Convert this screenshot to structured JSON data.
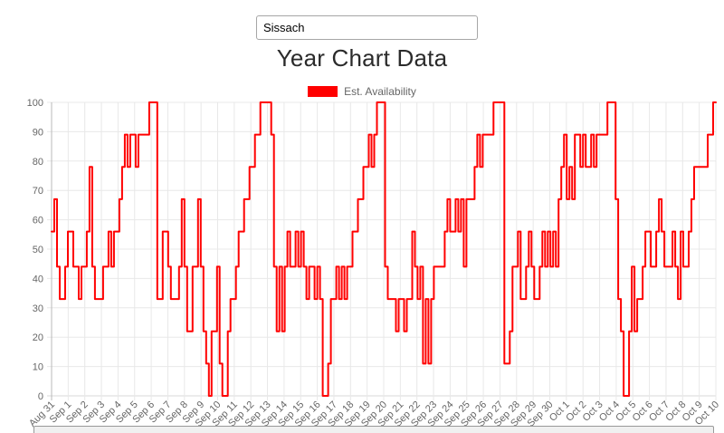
{
  "search": {
    "value": "Sissach"
  },
  "chart": {
    "title": "Year Chart Data",
    "legend_label": "Est. Availability"
  },
  "colors": {
    "series_line": "#ff0000",
    "grid": "#e8e8e8",
    "grid_first": "#b9b9b9",
    "grid_zero": "#d9d9d9",
    "axis_text": "#666666"
  },
  "chart_data": {
    "type": "line",
    "title": "Year Chart Data",
    "legend": [
      "Est. Availability"
    ],
    "legend_position": "top",
    "grid": true,
    "line_color": "#ff0000",
    "xlabel": "",
    "ylabel": "",
    "ylim": [
      0,
      100
    ],
    "ytick_step": 10,
    "yticks": [
      0,
      10,
      20,
      30,
      40,
      50,
      60,
      70,
      80,
      90,
      100
    ],
    "categories": [
      "Aug 31",
      "Sep 1",
      "Sep 2",
      "Sep 3",
      "Sep 4",
      "Sep 5",
      "Sep 6",
      "Sep 7",
      "Sep 8",
      "Sep 9",
      "Sep 10",
      "Sep 11",
      "Sep 12",
      "Sep 13",
      "Sep 14",
      "Sep 15",
      "Sep 16",
      "Sep 17",
      "Sep 18",
      "Sep 19",
      "Sep 20",
      "Sep 21",
      "Sep 22",
      "Sep 23",
      "Sep 24",
      "Sep 25",
      "Sep 26",
      "Sep 27",
      "Sep 28",
      "Sep 29",
      "Sep 30",
      "Oct 1",
      "Oct 2",
      "Oct 3",
      "Oct 4",
      "Oct 5",
      "Oct 6",
      "Oct 7",
      "Oct 8",
      "Oct 9",
      "Oct 10"
    ],
    "points_per_category": 6,
    "series": [
      {
        "name": "Est. Availability",
        "values_per_day": [
          [
            56,
            67,
            44,
            33,
            33,
            44
          ],
          [
            56,
            56,
            44,
            44,
            33,
            44
          ],
          [
            44,
            56,
            78,
            44,
            33,
            33
          ],
          [
            33,
            44,
            44,
            56,
            44,
            56
          ],
          [
            56,
            67,
            78,
            89,
            78,
            89
          ],
          [
            89,
            78,
            89,
            89,
            89,
            89
          ],
          [
            100,
            100,
            100,
            33,
            33,
            56
          ],
          [
            56,
            44,
            33,
            33,
            33,
            44
          ],
          [
            67,
            44,
            22,
            22,
            44,
            44
          ],
          [
            67,
            44,
            22,
            11,
            0,
            22
          ],
          [
            22,
            44,
            11,
            0,
            0,
            22
          ],
          [
            33,
            33,
            44,
            56,
            56,
            67
          ],
          [
            67,
            78,
            78,
            89,
            89,
            100
          ],
          [
            100,
            100,
            100,
            89,
            44,
            22
          ],
          [
            44,
            22,
            44,
            56,
            44,
            44
          ],
          [
            56,
            44,
            56,
            44,
            33,
            44
          ],
          [
            44,
            33,
            44,
            33,
            0,
            0
          ],
          [
            11,
            33,
            33,
            44,
            33,
            44
          ],
          [
            33,
            44,
            44,
            56,
            56,
            67
          ],
          [
            67,
            78,
            78,
            89,
            78,
            89
          ],
          [
            100,
            100,
            100,
            44,
            33,
            33
          ],
          [
            33,
            22,
            33,
            33,
            22,
            33
          ],
          [
            33,
            56,
            44,
            33,
            44,
            11
          ],
          [
            33,
            11,
            33,
            44,
            44,
            44
          ],
          [
            44,
            56,
            67,
            56,
            56,
            67
          ],
          [
            56,
            67,
            44,
            67,
            67,
            67
          ],
          [
            78,
            89,
            78,
            89,
            89,
            89
          ],
          [
            89,
            100,
            100,
            100,
            100,
            11
          ],
          [
            11,
            22,
            44,
            44,
            56,
            33
          ],
          [
            33,
            44,
            56,
            44,
            33,
            33
          ],
          [
            44,
            56,
            44,
            56,
            44,
            56
          ],
          [
            44,
            67,
            78,
            89,
            67,
            78
          ],
          [
            67,
            89,
            89,
            78,
            89,
            78
          ],
          [
            78,
            89,
            78,
            89,
            89,
            89
          ],
          [
            89,
            100,
            100,
            100,
            67,
            33
          ],
          [
            22,
            0,
            0,
            22,
            44,
            22
          ],
          [
            33,
            33,
            44,
            56,
            56,
            44
          ],
          [
            44,
            56,
            67,
            56,
            44,
            44
          ],
          [
            44,
            56,
            44,
            33,
            56,
            44
          ],
          [
            44,
            56,
            67,
            78,
            78,
            78
          ],
          [
            78,
            78,
            89,
            89,
            100,
            100
          ]
        ]
      }
    ]
  }
}
